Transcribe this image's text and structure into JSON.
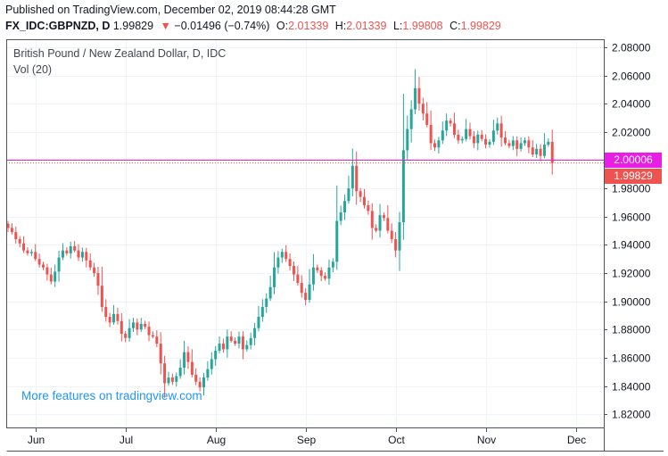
{
  "header": {
    "published": "Published on TradingView.com, December 02, 2019 08:44:28 GMT",
    "symbol": "FX_IDC:GBPNZD, D",
    "last": "1.99829",
    "change_arrow": "▼",
    "change": "−0.01496 (−0.74%)",
    "o_label": "O:",
    "o_value": "2.01339",
    "h_label": "H:",
    "h_value": "2.01339",
    "l_label": "L:",
    "l_value": "1.99808",
    "c_label": "C:",
    "c_value": "1.99829"
  },
  "legend": {
    "title": "British Pound / New Zealand Dollar, D, IDC",
    "volume": "Vol (20)"
  },
  "promo": "More features on tradingview.com",
  "price_tags": {
    "line_value": "2.00006",
    "last_value": "1.99829"
  },
  "colors": {
    "up": "#26a69a",
    "down": "#ef5350",
    "line": "#e91ee6",
    "last_tag": "#ef5350",
    "line_tag": "#e91ee6",
    "promo": "#2196f3"
  },
  "chart_data": {
    "type": "candlestick",
    "y_range": [
      1.81,
      2.085
    ],
    "y_ticks": [
      "2.08000",
      "2.06000",
      "2.04000",
      "2.02000",
      "2.00000",
      "1.98000",
      "1.96000",
      "1.94000",
      "1.92000",
      "1.90000",
      "1.88000",
      "1.86000",
      "1.84000",
      "1.82000"
    ],
    "y_tick_values": [
      2.08,
      2.06,
      2.04,
      2.02,
      2.0,
      1.98,
      1.96,
      1.94,
      1.92,
      1.9,
      1.88,
      1.86,
      1.84,
      1.82
    ],
    "x_labels": [
      "Jun",
      "Jul",
      "Aug",
      "Sep",
      "Oct",
      "Nov",
      "Dec"
    ],
    "x_label_index": [
      7,
      30,
      53,
      76,
      99,
      122,
      145
    ],
    "horizontal_line": 2.00006,
    "closes": [
      1.952,
      1.949,
      1.944,
      1.941,
      1.936,
      1.934,
      1.935,
      1.93,
      1.926,
      1.924,
      1.919,
      1.914,
      1.921,
      1.931,
      1.936,
      1.934,
      1.939,
      1.936,
      1.931,
      1.935,
      1.929,
      1.924,
      1.92,
      1.911,
      1.896,
      1.889,
      1.885,
      1.891,
      1.886,
      1.877,
      1.874,
      1.881,
      1.885,
      1.88,
      1.884,
      1.882,
      1.876,
      1.875,
      1.87,
      1.856,
      1.842,
      1.846,
      1.843,
      1.847,
      1.853,
      1.864,
      1.857,
      1.848,
      1.843,
      1.839,
      1.846,
      1.852,
      1.859,
      1.865,
      1.87,
      1.866,
      1.875,
      1.872,
      1.87,
      1.875,
      1.866,
      1.869,
      1.874,
      1.881,
      1.889,
      1.896,
      1.902,
      1.91,
      1.924,
      1.931,
      1.935,
      1.93,
      1.925,
      1.919,
      1.913,
      1.906,
      1.901,
      1.912,
      1.924,
      1.922,
      1.918,
      1.916,
      1.924,
      1.928,
      1.957,
      1.963,
      1.971,
      1.98,
      1.996,
      1.978,
      1.974,
      1.968,
      1.964,
      1.952,
      1.95,
      1.961,
      1.959,
      1.95,
      1.944,
      1.936,
      1.956,
      2.007,
      2.022,
      2.036,
      2.051,
      2.04,
      2.033,
      2.025,
      2.012,
      2.009,
      2.014,
      2.021,
      2.028,
      2.026,
      2.018,
      2.014,
      2.015,
      2.022,
      2.017,
      2.012,
      2.018,
      2.015,
      2.011,
      2.013,
      2.021,
      2.026,
      2.016,
      2.012,
      2.01,
      2.014,
      2.008,
      2.012,
      2.014,
      2.009,
      2.004,
      2.008,
      2.003,
      2.011,
      2.013,
      1.998
    ],
    "open": [
      1.955
    ]
  }
}
